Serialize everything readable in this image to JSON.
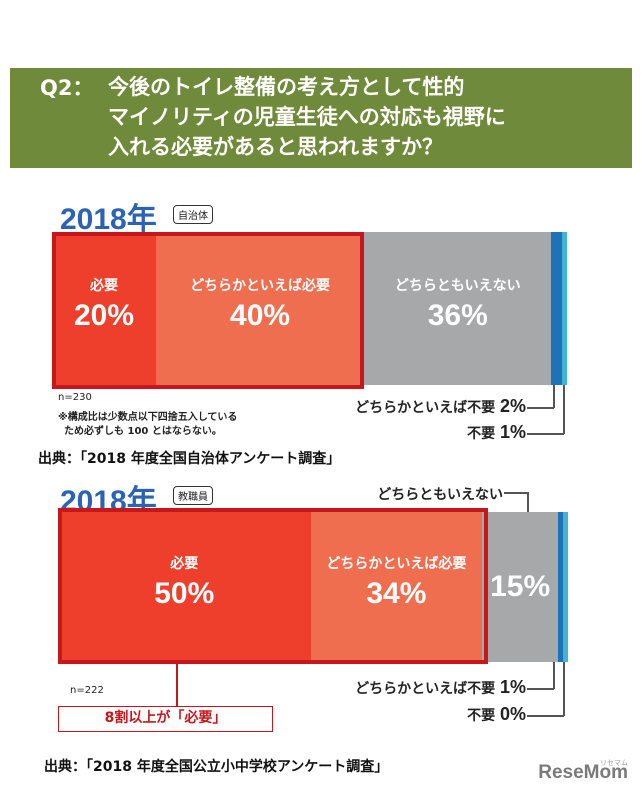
{
  "header": {
    "q_label": "Q2：",
    "lines": [
      "今後のトイレ整備の考え方として性的",
      "マイノリティの児童生徒への対応も視野に",
      "入れる必要があると思われますか？"
    ]
  },
  "chart_data": [
    {
      "type": "bar",
      "year": "2018年",
      "badge": "自治体",
      "n": "n=230",
      "note_lines": [
        "※構成比は少数点以下四捨五入している",
        "ため必ずしも 100 とはならない。"
      ],
      "source": "出典：「2018 年度全国自治体アンケート調査」",
      "series": [
        {
          "name": "必要",
          "value": 20,
          "label": "20%"
        },
        {
          "name": "どちらかといえば必要",
          "value": 40,
          "label": "40%"
        },
        {
          "name": "どちらともいえない",
          "value": 36,
          "label": "36%"
        },
        {
          "name": "どちらかといえば不要",
          "value": 2,
          "label": "2%"
        },
        {
          "name": "不要",
          "value": 1,
          "label": "1%"
        }
      ],
      "colors": [
        "#ed3f2c",
        "#ef6e4f",
        "#a7a8aa",
        "#1f71b8",
        "#42b3d4"
      ]
    },
    {
      "type": "bar",
      "year": "2018年",
      "badge": "教職員",
      "n": "n=222",
      "callout": "8割以上が「必要」",
      "source": "出典：「2018 年度全国公立小中学校アンケート調査」",
      "series": [
        {
          "name": "必要",
          "value": 50,
          "label": "50%"
        },
        {
          "name": "どちらかといえば必要",
          "value": 34,
          "label": "34%"
        },
        {
          "name": "どちらともいえない",
          "value": 15,
          "label": "15%"
        },
        {
          "name": "どちらかといえば不要",
          "value": 1,
          "label": "1%"
        },
        {
          "name": "不要",
          "value": 0,
          "label": "0%"
        }
      ],
      "colors": [
        "#ed3f2c",
        "#ef6e4f",
        "#a7a8aa",
        "#1f71b8",
        "#42b3d4"
      ]
    }
  ],
  "logo": {
    "text": "ReseMom",
    "sub": "リセマム"
  }
}
